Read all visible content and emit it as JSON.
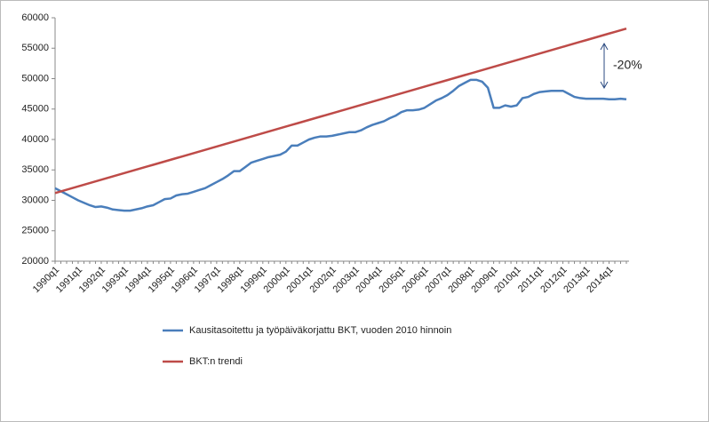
{
  "chart_data": {
    "type": "line",
    "categories": [
      "1990q1",
      null,
      null,
      null,
      "1991q1",
      null,
      null,
      null,
      "1992q1",
      null,
      null,
      null,
      "1993q1",
      null,
      null,
      null,
      "1994q1",
      null,
      null,
      null,
      "1995q1",
      null,
      null,
      null,
      "1996q1",
      null,
      null,
      null,
      "1997q1",
      null,
      null,
      null,
      "1998q1",
      null,
      null,
      null,
      "1999q1",
      null,
      null,
      null,
      "2000q1",
      null,
      null,
      null,
      "2001q1",
      null,
      null,
      null,
      "2002q1",
      null,
      null,
      null,
      "2003q1",
      null,
      null,
      null,
      "2004q1",
      null,
      null,
      null,
      "2005q1",
      null,
      null,
      null,
      "2006q1",
      null,
      null,
      null,
      "2007q1",
      null,
      null,
      null,
      "2008q1",
      null,
      null,
      null,
      "2009q1",
      null,
      null,
      null,
      "2010q1",
      null,
      null,
      null,
      "2011q1",
      null,
      null,
      null,
      "2012q1",
      null,
      null,
      null,
      "2013q1",
      null,
      null,
      null,
      "2014q1",
      null,
      null,
      null
    ],
    "series": [
      {
        "name": "Kausitasoitettu ja työpäiväkorjattu BKT, vuoden 2010 hinnoin",
        "color": "#4a7ebb",
        "values": [
          32000,
          31500,
          31000,
          30500,
          30000,
          29600,
          29200,
          28900,
          29000,
          28800,
          28500,
          28400,
          28300,
          28300,
          28500,
          28700,
          29000,
          29200,
          29700,
          30200,
          30300,
          30800,
          31000,
          31100,
          31400,
          31700,
          32000,
          32500,
          33000,
          33500,
          34100,
          34800,
          34800,
          35500,
          36200,
          36500,
          36800,
          37100,
          37300,
          37500,
          38000,
          39000,
          39000,
          39500,
          40000,
          40300,
          40500,
          40500,
          40600,
          40800,
          41000,
          41200,
          41200,
          41500,
          42000,
          42400,
          42700,
          43000,
          43500,
          43900,
          44500,
          44800,
          44800,
          44900,
          45200,
          45800,
          46400,
          46800,
          47300,
          48000,
          48800,
          49300,
          49800,
          49800,
          49500,
          48500,
          45200,
          45200,
          45600,
          45400,
          45600,
          46800,
          47000,
          47500,
          47800,
          47900,
          48000,
          48000,
          48000,
          47500,
          47000,
          46800,
          46700,
          46700,
          46700,
          46700,
          46600,
          46600,
          46700,
          46600
        ]
      },
      {
        "name": "BKT:n trendi",
        "color": "#be4b48",
        "values": [
          31200,
          31473,
          31746,
          32019,
          32292,
          32565,
          32838,
          33111,
          33384,
          33657,
          33930,
          34203,
          34476,
          34749,
          35022,
          35295,
          35568,
          35841,
          36114,
          36387,
          36660,
          36933,
          37206,
          37479,
          37752,
          38025,
          38298,
          38571,
          38844,
          39117,
          39390,
          39663,
          39936,
          40209,
          40482,
          40755,
          41028,
          41301,
          41574,
          41847,
          42120,
          42393,
          42666,
          42939,
          43212,
          43485,
          43758,
          44031,
          44304,
          44577,
          44850,
          45123,
          45396,
          45669,
          45942,
          46215,
          46488,
          46761,
          47034,
          47307,
          47580,
          47853,
          48126,
          48399,
          48672,
          48945,
          49218,
          49491,
          49764,
          50037,
          50310,
          50583,
          50856,
          51129,
          51402,
          51675,
          51948,
          52221,
          52494,
          52767,
          53040,
          53313,
          53586,
          53859,
          54132,
          54405,
          54678,
          54951,
          55224,
          55497,
          55770,
          56043,
          56316,
          56589,
          56862,
          57135,
          57408,
          57681,
          57954,
          58227
        ]
      }
    ],
    "ylim": [
      20000,
      60000
    ],
    "yticks": [
      20000,
      25000,
      30000,
      35000,
      40000,
      45000,
      50000,
      55000,
      60000
    ],
    "grid": false,
    "annotation": "-20%"
  }
}
